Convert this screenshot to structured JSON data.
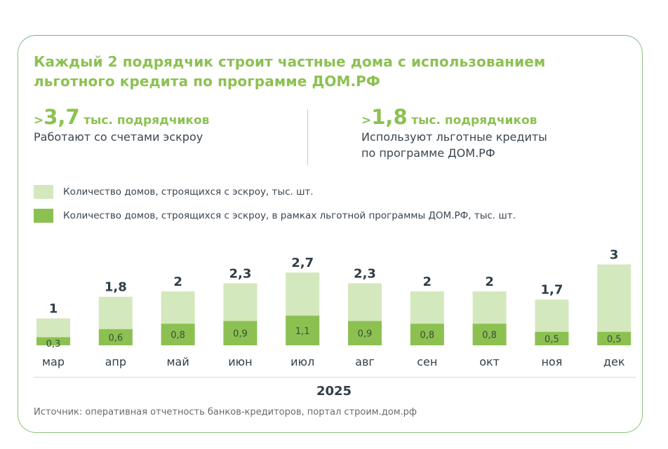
{
  "title": "Каждый 2 подрядчик строит частные дома с использованием льготного кредита по программе ДОМ.РФ",
  "stats": [
    {
      "prefix": ">",
      "value": "3,7",
      "unit": "тыс. подрядчиков",
      "desc_lines": [
        "Работают со счетами эскроу"
      ]
    },
    {
      "prefix": ">",
      "value": "1,8",
      "unit": "тыс. подрядчиков",
      "desc_lines": [
        "Используют льготные кредиты",
        "по программе ДОМ.РФ"
      ]
    }
  ],
  "colors": {
    "accent": "#8cc152",
    "light_bar": "#d4e8bd",
    "dark_bar": "#8cc152",
    "text": "#2f3e48"
  },
  "chart_data": {
    "type": "bar",
    "stacked": "overlay",
    "categories": [
      "мар",
      "апр",
      "май",
      "июн",
      "июл",
      "авг",
      "сен",
      "окт",
      "ноя",
      "дек"
    ],
    "series": [
      {
        "name": "Количество домов, строящихся с эскроу, тыс. шт.",
        "values": [
          1,
          1.8,
          2,
          2.3,
          2.7,
          2.3,
          2,
          2,
          1.7,
          3
        ],
        "labels": [
          "1",
          "1,8",
          "2",
          "2,3",
          "2,7",
          "2,3",
          "2",
          "2",
          "1,7",
          "3"
        ]
      },
      {
        "name": "Количество домов, строящихся с эскроу, в рамках льготной программы ДОМ.РФ, тыс. шт.",
        "values": [
          0.3,
          0.6,
          0.8,
          0.9,
          1.1,
          0.9,
          0.8,
          0.8,
          0.5,
          0.5
        ],
        "labels": [
          "0,3",
          "0,6",
          "0,8",
          "0,9",
          "1,1",
          "0,9",
          "0,8",
          "0,8",
          "0,5",
          "0,5"
        ]
      }
    ],
    "xlabel": "2025",
    "ylim": [
      0,
      3
    ],
    "legend_position": "top-left",
    "grid": false
  },
  "source": "Источник: оперативная отчетность банков-кредиторов, портал строим.дом.рф"
}
